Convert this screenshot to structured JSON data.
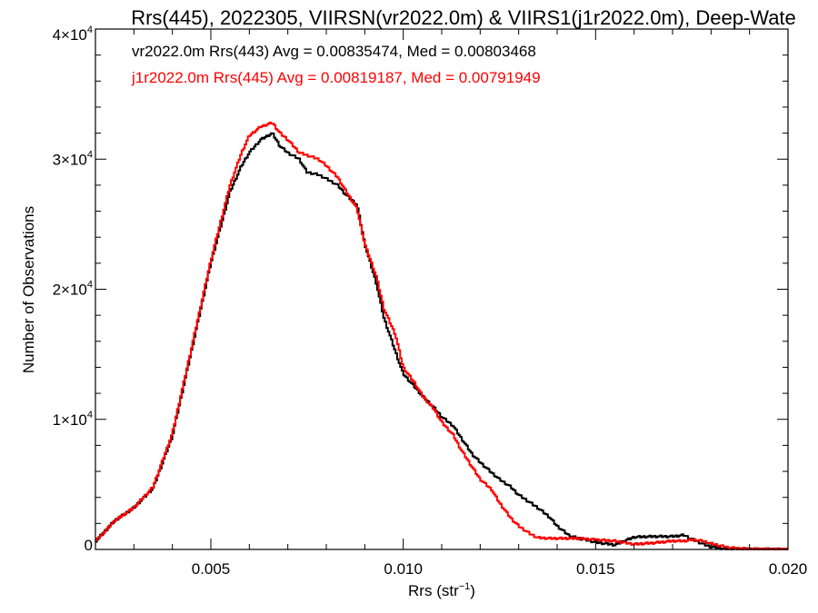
{
  "chart_data": {
    "type": "line",
    "title": "Rrs(445), 2022305, VIIRSN(vr2022.0m) & VIIRS1(j1r2022.0m), Deep-Wate",
    "xlabel_main": "Rrs (str",
    "xlabel_sup": "−1",
    "xlabel_close": ")",
    "ylabel": "Number of Observations",
    "xlim": [
      0.002,
      0.02
    ],
    "ylim": [
      0,
      40000
    ],
    "x_ticks": [
      {
        "value": 0.005,
        "label": "0.005"
      },
      {
        "value": 0.01,
        "label": "0.010"
      },
      {
        "value": 0.015,
        "label": "0.015"
      },
      {
        "value": 0.02,
        "label": "0.020"
      }
    ],
    "x_minor_step": 0.001,
    "y_ticks": [
      {
        "value": 0,
        "mant": "0",
        "exp": ""
      },
      {
        "value": 10000,
        "mant": "1×10",
        "exp": "4"
      },
      {
        "value": 20000,
        "mant": "2×10",
        "exp": "4"
      },
      {
        "value": 30000,
        "mant": "3×10",
        "exp": "4"
      },
      {
        "value": 40000,
        "mant": "4×10",
        "exp": "4"
      }
    ],
    "y_minor_step": 2000,
    "step_style": "histogram",
    "series": [
      {
        "name": "vr2022.0m Rrs(443)",
        "legend_text": "vr2022.0m Rrs(443) Avg = 0.00835474, Med = 0.00803468",
        "color": "#000000",
        "x": [
          0.002,
          0.0025,
          0.003,
          0.0035,
          0.004,
          0.0045,
          0.005,
          0.0055,
          0.0058,
          0.006,
          0.0063,
          0.0066,
          0.0068,
          0.007,
          0.0073,
          0.0075,
          0.0078,
          0.008,
          0.0083,
          0.0085,
          0.0088,
          0.009,
          0.0093,
          0.0095,
          0.0098,
          0.01,
          0.0103,
          0.0105,
          0.0108,
          0.011,
          0.0113,
          0.0115,
          0.0118,
          0.012,
          0.0123,
          0.0125,
          0.0128,
          0.013,
          0.0133,
          0.0135,
          0.0138,
          0.014,
          0.0143,
          0.0145,
          0.0148,
          0.015,
          0.0155,
          0.016,
          0.0165,
          0.017,
          0.0173,
          0.0175,
          0.0178,
          0.018,
          0.0183,
          0.0185,
          0.019,
          0.02
        ],
        "y": [
          600,
          2200,
          3200,
          4700,
          8700,
          15300,
          22000,
          27500,
          29500,
          30500,
          31500,
          32000,
          31000,
          30500,
          30000,
          29000,
          28800,
          28500,
          28000,
          27300,
          26500,
          23500,
          20500,
          17800,
          15200,
          13500,
          12500,
          11800,
          10900,
          10200,
          9500,
          8600,
          7300,
          6700,
          5900,
          5400,
          4800,
          4200,
          3600,
          3200,
          2500,
          1800,
          1100,
          900,
          700,
          550,
          350,
          950,
          1000,
          1000,
          1100,
          800,
          400,
          200,
          80,
          50,
          20,
          0
        ]
      },
      {
        "name": "j1r2022.0m Rrs(445)",
        "legend_text": "j1r2022.0m Rrs(445) Avg = 0.00819187, Med = 0.00791949",
        "color": "#ff0000",
        "x": [
          0.002,
          0.0025,
          0.003,
          0.0035,
          0.004,
          0.0045,
          0.005,
          0.0055,
          0.0058,
          0.006,
          0.0063,
          0.0066,
          0.0068,
          0.007,
          0.0073,
          0.0075,
          0.0078,
          0.008,
          0.0083,
          0.0085,
          0.0088,
          0.009,
          0.0093,
          0.0095,
          0.0098,
          0.01,
          0.0103,
          0.0105,
          0.0108,
          0.011,
          0.0113,
          0.0115,
          0.0118,
          0.012,
          0.0123,
          0.0125,
          0.0128,
          0.013,
          0.0133,
          0.0135,
          0.0138,
          0.014,
          0.0143,
          0.0145,
          0.0148,
          0.015,
          0.0155,
          0.016,
          0.0165,
          0.017,
          0.0173,
          0.0175,
          0.0178,
          0.018,
          0.0183,
          0.0185,
          0.019,
          0.02
        ],
        "y": [
          600,
          2200,
          3200,
          4800,
          8900,
          15500,
          22200,
          28000,
          30500,
          31800,
          32500,
          32800,
          32000,
          31500,
          30500,
          30300,
          30000,
          29500,
          28600,
          27600,
          26200,
          23500,
          21000,
          18500,
          16500,
          14000,
          12800,
          11800,
          10800,
          9800,
          8800,
          7700,
          6300,
          5400,
          4600,
          3600,
          2400,
          1800,
          1200,
          900,
          850,
          850,
          850,
          850,
          800,
          750,
          650,
          400,
          500,
          650,
          650,
          750,
          650,
          450,
          250,
          120,
          30,
          0
        ]
      }
    ],
    "legend_placement": "top-left inside plot",
    "grid": false
  }
}
